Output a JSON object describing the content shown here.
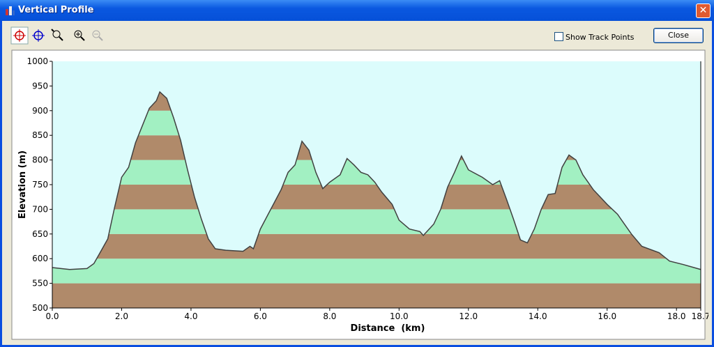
{
  "window": {
    "title": "Vertical Profile",
    "checkbox_label": "Show Track Points",
    "close_button": "Close"
  },
  "chart_data": {
    "type": "area",
    "x_label": "Distance  (km)",
    "y_label": "Elevation (m)",
    "x": [
      0.0,
      0.5,
      1.0,
      1.2,
      1.4,
      1.6,
      1.8,
      2.0,
      2.2,
      2.4,
      2.6,
      2.8,
      3.0,
      3.1,
      3.3,
      3.5,
      3.7,
      3.9,
      4.1,
      4.3,
      4.5,
      4.7,
      5.0,
      5.5,
      5.7,
      5.8,
      6.0,
      6.3,
      6.6,
      6.8,
      7.0,
      7.2,
      7.4,
      7.6,
      7.8,
      8.0,
      8.3,
      8.5,
      8.7,
      8.9,
      9.1,
      9.3,
      9.5,
      9.8,
      10.0,
      10.3,
      10.6,
      10.7,
      11.0,
      11.2,
      11.4,
      11.6,
      11.8,
      12.0,
      12.4,
      12.7,
      12.9,
      13.1,
      13.3,
      13.5,
      13.7,
      13.9,
      14.1,
      14.3,
      14.5,
      14.7,
      14.9,
      15.1,
      15.3,
      15.6,
      16.0,
      16.3,
      16.7,
      17.0,
      17.5,
      17.8,
      18.2,
      18.7
    ],
    "values": [
      582,
      578,
      580,
      590,
      615,
      640,
      705,
      765,
      785,
      835,
      870,
      905,
      920,
      938,
      925,
      885,
      840,
      780,
      725,
      680,
      640,
      620,
      617,
      615,
      625,
      620,
      660,
      700,
      740,
      775,
      790,
      838,
      820,
      775,
      742,
      755,
      770,
      803,
      790,
      775,
      770,
      755,
      735,
      710,
      678,
      660,
      655,
      647,
      670,
      700,
      745,
      775,
      808,
      780,
      765,
      750,
      758,
      720,
      680,
      638,
      632,
      660,
      700,
      730,
      732,
      785,
      810,
      800,
      770,
      740,
      710,
      690,
      650,
      625,
      612,
      595,
      588,
      578
    ],
    "xlim": [
      0,
      18.7
    ],
    "ylim": [
      500,
      1000
    ],
    "xticks": [
      {
        "value": 0,
        "label": "0.0"
      },
      {
        "value": 2,
        "label": "2.0"
      },
      {
        "value": 4,
        "label": "4.0"
      },
      {
        "value": 6,
        "label": "6.0"
      },
      {
        "value": 8,
        "label": "8.0"
      },
      {
        "value": 10,
        "label": "10.0"
      },
      {
        "value": 12,
        "label": "12.0"
      },
      {
        "value": 14,
        "label": "14.0"
      },
      {
        "value": 16,
        "label": "16.0"
      },
      {
        "value": 18,
        "label": "18.0"
      },
      18.7
    ],
    "yticks": [
      500,
      550,
      600,
      650,
      700,
      750,
      800,
      850,
      900,
      950,
      1000
    ],
    "line_color": "#404040",
    "band_colors": [
      "#b08a6a",
      "#a2f0c2"
    ],
    "background": "#dcfcfc"
  }
}
